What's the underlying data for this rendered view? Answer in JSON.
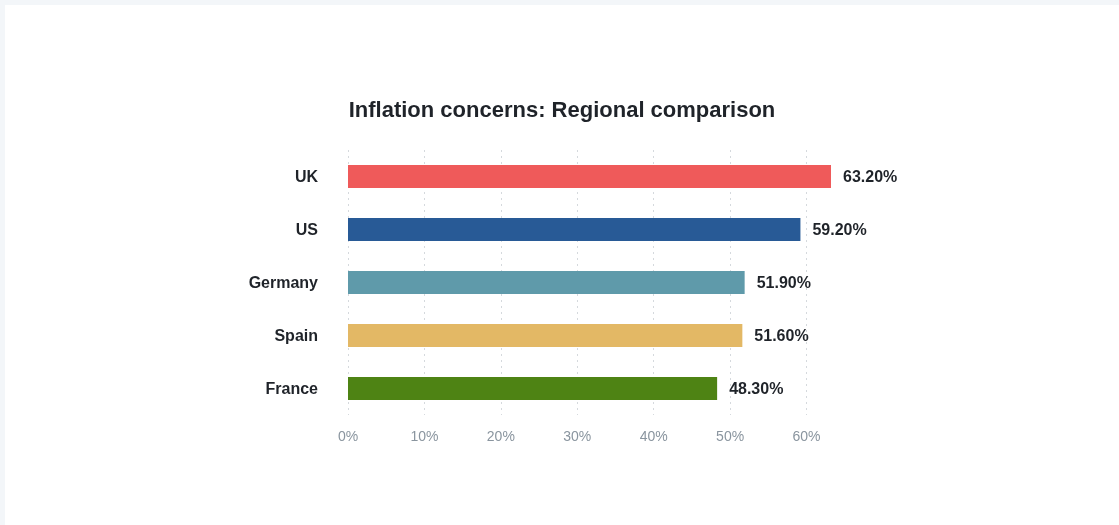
{
  "chart_data": {
    "type": "bar",
    "orientation": "horizontal",
    "title": "Inflation concerns: Regional comparison",
    "categories": [
      "UK",
      "US",
      "Germany",
      "Spain",
      "France"
    ],
    "values": [
      63.2,
      59.2,
      51.9,
      51.6,
      48.3
    ],
    "colors": [
      "#ef5a5a",
      "#285a96",
      "#5f9aaa",
      "#e3b865",
      "#4e8314"
    ],
    "value_labels": [
      "63.20%",
      "59.20%",
      "51.90%",
      "51.60%",
      "48.30%"
    ],
    "xlim": [
      0,
      63.2
    ],
    "xticks": [
      {
        "value": 0,
        "label": "0%"
      },
      {
        "value": 10,
        "label": "10%"
      },
      {
        "value": 20,
        "label": "20%"
      },
      {
        "value": 30,
        "label": "30%"
      },
      {
        "value": 40,
        "label": "40%"
      },
      {
        "value": 50,
        "label": "50%"
      },
      {
        "value": 60,
        "label": "60%"
      }
    ],
    "grid": "x"
  }
}
